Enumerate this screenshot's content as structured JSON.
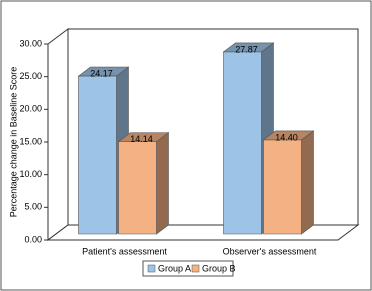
{
  "chart_data": {
    "type": "bar3d",
    "y_label": "Percentage change in Baseline Score",
    "categories": [
      "Patient's assessment",
      "Observer's assessment"
    ],
    "series": [
      {
        "name": "Group A",
        "color": "#9dc3e6",
        "values": [
          24.17,
          27.87
        ],
        "value_labels": [
          "24.17",
          "27.87"
        ]
      },
      {
        "name": "Group B",
        "color": "#f4b183",
        "values": [
          14.14,
          14.4
        ],
        "value_labels": [
          "14.14",
          "14.40"
        ]
      }
    ],
    "ylim": [
      0,
      30
    ],
    "yticks": [
      {
        "value": 0,
        "label": "0.00"
      },
      {
        "value": 5,
        "label": "5.00"
      },
      {
        "value": 10,
        "label": "10.00"
      },
      {
        "value": 15,
        "label": "15.00"
      },
      {
        "value": 20,
        "label": "20.00"
      },
      {
        "value": 25,
        "label": "25.00"
      },
      {
        "value": 30,
        "label": "30.00"
      }
    ],
    "legend": "bottom"
  }
}
